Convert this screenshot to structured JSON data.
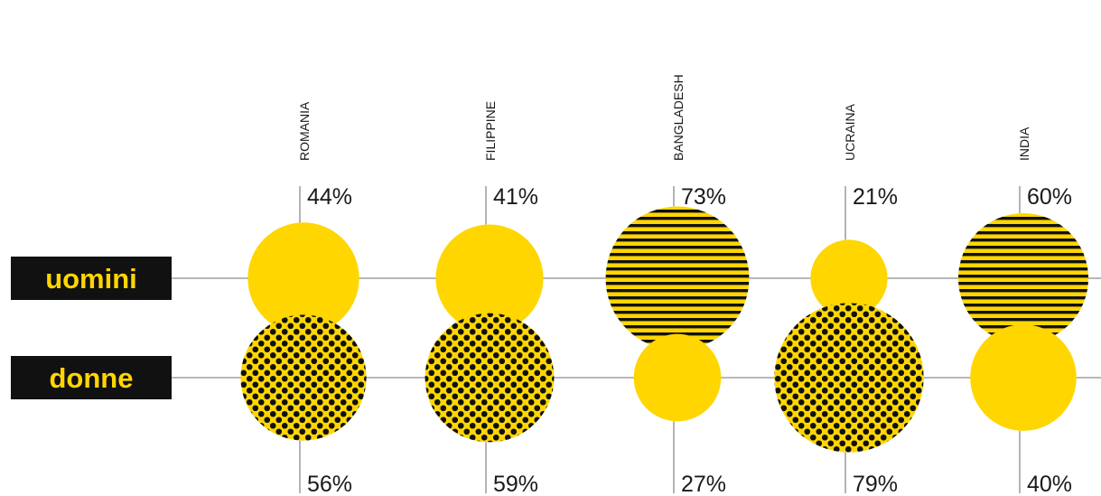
{
  "colors": {
    "yellow": "#FFD600",
    "black": "#111111",
    "line": "#8c8c8c",
    "text": "#1a1a1a"
  },
  "rows": {
    "men_label": "uomini",
    "women_label": "donne"
  },
  "chart_data": {
    "type": "bubble",
    "categories": [
      "ROMANIA",
      "FILIPPINE",
      "BANGLADESH",
      "UCRAINA",
      "INDIA"
    ],
    "series": [
      {
        "name": "uomini",
        "values": [
          44,
          41,
          73,
          21,
          60
        ],
        "labels": [
          "44%",
          "41%",
          "73%",
          "21%",
          "60%"
        ]
      },
      {
        "name": "donne",
        "values": [
          56,
          59,
          27,
          79,
          40
        ],
        "labels": [
          "56%",
          "59%",
          "27%",
          "79%",
          "40%"
        ]
      }
    ],
    "fill_rule": "larger share of each country is patterned (stripes for uomini, dots for donne); smaller share is solid yellow"
  }
}
